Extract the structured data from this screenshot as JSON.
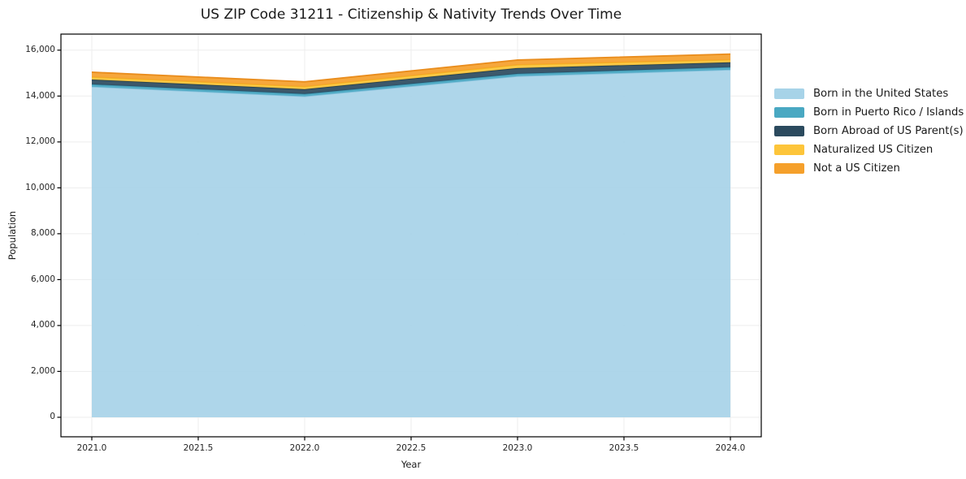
{
  "title": "US ZIP Code 31211 - Citizenship & Nativity Trends Over Time",
  "chart_data": {
    "type": "area",
    "stacked": true,
    "title": "US ZIP Code 31211 - Citizenship & Nativity Trends Over Time",
    "xlabel": "Year",
    "ylabel": "Population",
    "x": [
      2021,
      2022,
      2023,
      2024
    ],
    "series": [
      {
        "name": "Born in the United States",
        "values": [
          14410,
          13990,
          14870,
          15150
        ],
        "color": "#a7d3e8",
        "edge": "#85c1dc"
      },
      {
        "name": "Born in Puerto Rico / Islands",
        "values": [
          100,
          100,
          100,
          110
        ],
        "color": "#49a8c2",
        "edge": "#3d97b3"
      },
      {
        "name": "Born Abroad of US Parent(s)",
        "values": [
          210,
          210,
          250,
          210
        ],
        "color": "#2b4a5e",
        "edge": "#23404f"
      },
      {
        "name": "Naturalized US Citizen",
        "values": [
          110,
          110,
          140,
          110
        ],
        "color": "#fdc53a",
        "edge": "#f4b723"
      },
      {
        "name": "Not a US Citizen",
        "values": [
          210,
          210,
          210,
          250
        ],
        "color": "#f5a02b",
        "edge": "#e98c1c"
      }
    ],
    "totals": [
      15040,
      14620,
      15570,
      15830
    ],
    "x_ticks": [
      {
        "v": 2021,
        "label": "2021.0"
      },
      {
        "v": 2021.5,
        "label": "2021.5"
      },
      {
        "v": 2022,
        "label": "2022.0"
      },
      {
        "v": 2022.5,
        "label": "2022.5"
      },
      {
        "v": 2023,
        "label": "2023.0"
      },
      {
        "v": 2023.5,
        "label": "2023.5"
      },
      {
        "v": 2024,
        "label": "2024.0"
      }
    ],
    "y_ticks": [
      {
        "v": 0,
        "label": "0"
      },
      {
        "v": 2000,
        "label": "2,000"
      },
      {
        "v": 4000,
        "label": "4,000"
      },
      {
        "v": 6000,
        "label": "6,000"
      },
      {
        "v": 8000,
        "label": "8,000"
      },
      {
        "v": 10000,
        "label": "10,000"
      },
      {
        "v": 12000,
        "label": "12,000"
      },
      {
        "v": 14000,
        "label": "14,000"
      },
      {
        "v": 16000,
        "label": "16,000"
      }
    ],
    "xlim": [
      2020.855,
      2024.145
    ],
    "ylim": [
      -850,
      16700
    ],
    "grid": true,
    "legend_position": "right-outside",
    "colors": {
      "grid": "#ededed",
      "spine": "#000000",
      "background": "#ffffff"
    }
  }
}
